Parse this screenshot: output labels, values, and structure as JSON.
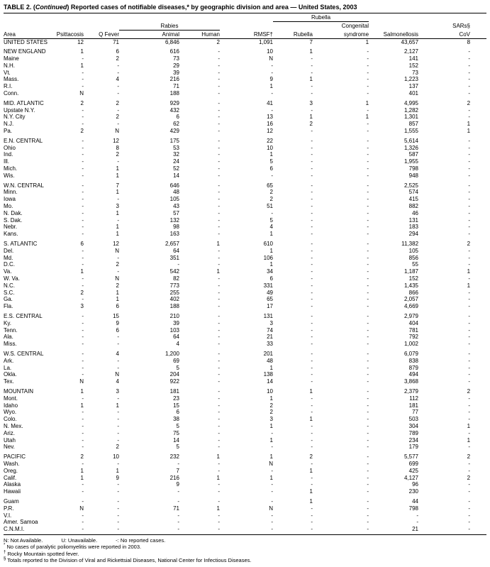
{
  "title": {
    "prefix": "TABLE 2. (",
    "continued": "Continued",
    "suffix": ") Reported cases of notifiable diseases,* by geographic division and area — United States, 2003"
  },
  "table": {
    "group_headers": {
      "rabies": "Rabies",
      "rubella": "Rubella",
      "congenital_line1": "Congenital",
      "sars_line1": "SARs§"
    },
    "columns": {
      "area": "Area",
      "psittacosis": "Psittacosis",
      "q_fever": "Q Fever",
      "animal": "Animal",
      "human": "Human",
      "rmsf": "RMSF†",
      "rubella": "Rubella",
      "congenital_line2": "syndrome",
      "salmonellosis": "Salmonellosis",
      "sars_line2": "CoV"
    },
    "sections": [
      {
        "rows": [
          {
            "area": "UNITED STATES",
            "values": [
              "12",
              "71",
              "6,846",
              "2",
              "1,091",
              "7",
              "1",
              "43,657",
              "8"
            ]
          }
        ]
      },
      {
        "rows": [
          {
            "area": "NEW ENGLAND",
            "values": [
              "1",
              "6",
              "616",
              "-",
              "10",
              "1",
              "-",
              "2,127",
              "-"
            ]
          },
          {
            "area": "Maine",
            "values": [
              "-",
              "2",
              "73",
              "-",
              "N",
              "-",
              "-",
              "141",
              "-"
            ]
          },
          {
            "area": "N.H.",
            "values": [
              "1",
              "-",
              "29",
              "-",
              "-",
              "-",
              "-",
              "152",
              "-"
            ]
          },
          {
            "area": "Vt.",
            "values": [
              "-",
              "-",
              "39",
              "-",
              "-",
              "-",
              "-",
              "73",
              "-"
            ]
          },
          {
            "area": "Mass.",
            "values": [
              "-",
              "4",
              "216",
              "-",
              "9",
              "1",
              "-",
              "1,223",
              "-"
            ]
          },
          {
            "area": "R.I.",
            "values": [
              "-",
              "-",
              "71",
              "-",
              "1",
              "-",
              "-",
              "137",
              "-"
            ]
          },
          {
            "area": "Conn.",
            "values": [
              "N",
              "-",
              "188",
              "-",
              "-",
              "-",
              "-",
              "401",
              "-"
            ]
          }
        ]
      },
      {
        "rows": [
          {
            "area": "MID. ATLANTIC",
            "values": [
              "2",
              "2",
              "929",
              "-",
              "41",
              "3",
              "1",
              "4,995",
              "2"
            ]
          },
          {
            "area": "Upstate N.Y.",
            "values": [
              "-",
              "-",
              "432",
              "-",
              "-",
              "-",
              "-",
              "1,282",
              "-"
            ]
          },
          {
            "area": "N.Y. City",
            "values": [
              "-",
              "2",
              "6",
              "-",
              "13",
              "1",
              "1",
              "1,301",
              "-"
            ]
          },
          {
            "area": "N.J.",
            "values": [
              "-",
              "-",
              "62",
              "-",
              "16",
              "2",
              "-",
              "857",
              "1"
            ]
          },
          {
            "area": "Pa.",
            "values": [
              "2",
              "N",
              "429",
              "-",
              "12",
              "-",
              "-",
              "1,555",
              "1"
            ]
          }
        ]
      },
      {
        "rows": [
          {
            "area": "E.N. CENTRAL",
            "values": [
              "-",
              "12",
              "175",
              "-",
              "22",
              "-",
              "-",
              "5,614",
              "-"
            ]
          },
          {
            "area": "Ohio",
            "values": [
              "-",
              "8",
              "53",
              "-",
              "10",
              "-",
              "-",
              "1,326",
              "-"
            ]
          },
          {
            "area": "Ind.",
            "values": [
              "-",
              "2",
              "32",
              "-",
              "1",
              "-",
              "-",
              "587",
              "-"
            ]
          },
          {
            "area": "Ill.",
            "values": [
              "-",
              "-",
              "24",
              "-",
              "5",
              "-",
              "-",
              "1,955",
              "-"
            ]
          },
          {
            "area": "Mich.",
            "values": [
              "-",
              "1",
              "52",
              "-",
              "6",
              "-",
              "-",
              "798",
              "-"
            ]
          },
          {
            "area": "Wis.",
            "values": [
              "-",
              "1",
              "14",
              "-",
              "-",
              "-",
              "-",
              "948",
              "-"
            ]
          }
        ]
      },
      {
        "rows": [
          {
            "area": "W.N. CENTRAL",
            "values": [
              "-",
              "7",
              "646",
              "-",
              "65",
              "-",
              "-",
              "2,525",
              "-"
            ]
          },
          {
            "area": "Minn.",
            "values": [
              "-",
              "1",
              "48",
              "-",
              "2",
              "-",
              "-",
              "574",
              "-"
            ]
          },
          {
            "area": "Iowa",
            "values": [
              "-",
              "-",
              "105",
              "-",
              "2",
              "-",
              "-",
              "415",
              "-"
            ]
          },
          {
            "area": "Mo.",
            "values": [
              "-",
              "3",
              "43",
              "-",
              "51",
              "-",
              "-",
              "882",
              "-"
            ]
          },
          {
            "area": "N. Dak.",
            "values": [
              "-",
              "1",
              "57",
              "-",
              "-",
              "-",
              "-",
              "46",
              "-"
            ]
          },
          {
            "area": "S. Dak.",
            "values": [
              "-",
              "-",
              "132",
              "-",
              "5",
              "-",
              "-",
              "131",
              "-"
            ]
          },
          {
            "area": "Nebr.",
            "values": [
              "-",
              "1",
              "98",
              "-",
              "4",
              "-",
              "-",
              "183",
              "-"
            ]
          },
          {
            "area": "Kans.",
            "values": [
              "-",
              "1",
              "163",
              "-",
              "1",
              "-",
              "-",
              "294",
              "-"
            ]
          }
        ]
      },
      {
        "rows": [
          {
            "area": "S. ATLANTIC",
            "values": [
              "6",
              "12",
              "2,657",
              "1",
              "610",
              "-",
              "-",
              "11,382",
              "2"
            ]
          },
          {
            "area": "Del.",
            "values": [
              "-",
              "N",
              "64",
              "-",
              "1",
              "-",
              "-",
              "105",
              "-"
            ]
          },
          {
            "area": "Md.",
            "values": [
              "-",
              "-",
              "351",
              "-",
              "106",
              "-",
              "-",
              "856",
              "-"
            ]
          },
          {
            "area": "D.C.",
            "values": [
              "-",
              "2",
              "-",
              "-",
              "1",
              "-",
              "-",
              "55",
              "-"
            ]
          },
          {
            "area": "Va.",
            "values": [
              "1",
              "-",
              "542",
              "1",
              "34",
              "-",
              "-",
              "1,187",
              "1"
            ]
          },
          {
            "area": "W. Va.",
            "values": [
              "-",
              "N",
              "82",
              "-",
              "6",
              "-",
              "-",
              "152",
              "-"
            ]
          },
          {
            "area": "N.C.",
            "values": [
              "-",
              "2",
              "773",
              "-",
              "331",
              "-",
              "-",
              "1,435",
              "1"
            ]
          },
          {
            "area": "S.C.",
            "values": [
              "2",
              "1",
              "255",
              "-",
              "49",
              "-",
              "-",
              "866",
              "-"
            ]
          },
          {
            "area": "Ga.",
            "values": [
              "-",
              "1",
              "402",
              "-",
              "65",
              "-",
              "-",
              "2,057",
              "-"
            ]
          },
          {
            "area": "Fla.",
            "values": [
              "3",
              "6",
              "188",
              "-",
              "17",
              "-",
              "-",
              "4,669",
              "-"
            ]
          }
        ]
      },
      {
        "rows": [
          {
            "area": "E.S. CENTRAL",
            "values": [
              "-",
              "15",
              "210",
              "-",
              "131",
              "-",
              "-",
              "2,979",
              "-"
            ]
          },
          {
            "area": "Ky.",
            "values": [
              "-",
              "9",
              "39",
              "-",
              "3",
              "-",
              "-",
              "404",
              "-"
            ]
          },
          {
            "area": "Tenn.",
            "values": [
              "-",
              "6",
              "103",
              "-",
              "74",
              "-",
              "-",
              "781",
              "-"
            ]
          },
          {
            "area": "Ala.",
            "values": [
              "-",
              "-",
              "64",
              "-",
              "21",
              "-",
              "-",
              "792",
              "-"
            ]
          },
          {
            "area": "Miss.",
            "values": [
              "-",
              "-",
              "4",
              "-",
              "33",
              "-",
              "-",
              "1,002",
              "-"
            ]
          }
        ]
      },
      {
        "rows": [
          {
            "area": "W.S. CENTRAL",
            "values": [
              "-",
              "4",
              "1,200",
              "-",
              "201",
              "-",
              "-",
              "6,079",
              "-"
            ]
          },
          {
            "area": "Ark.",
            "values": [
              "-",
              "-",
              "69",
              "-",
              "48",
              "-",
              "-",
              "838",
              "-"
            ]
          },
          {
            "area": "La.",
            "values": [
              "-",
              "-",
              "5",
              "-",
              "1",
              "-",
              "-",
              "879",
              "-"
            ]
          },
          {
            "area": "Okla.",
            "values": [
              "-",
              "N",
              "204",
              "-",
              "138",
              "-",
              "-",
              "494",
              "-"
            ]
          },
          {
            "area": "Tex.",
            "values": [
              "N",
              "4",
              "922",
              "-",
              "14",
              "-",
              "-",
              "3,868",
              "-"
            ]
          }
        ]
      },
      {
        "rows": [
          {
            "area": "MOUNTAIN",
            "values": [
              "1",
              "3",
              "181",
              "-",
              "10",
              "1",
              "-",
              "2,379",
              "2"
            ]
          },
          {
            "area": "Mont.",
            "values": [
              "-",
              "-",
              "23",
              "-",
              "1",
              "-",
              "-",
              "112",
              "-"
            ]
          },
          {
            "area": "Idaho",
            "values": [
              "1",
              "1",
              "15",
              "-",
              "2",
              "-",
              "-",
              "181",
              "-"
            ]
          },
          {
            "area": "Wyo.",
            "values": [
              "-",
              "-",
              "6",
              "-",
              "2",
              "-",
              "-",
              "77",
              "-"
            ]
          },
          {
            "area": "Colo.",
            "values": [
              "-",
              "-",
              "38",
              "-",
              "3",
              "1",
              "-",
              "503",
              "-"
            ]
          },
          {
            "area": "N. Mex.",
            "values": [
              "-",
              "-",
              "5",
              "-",
              "1",
              "-",
              "-",
              "304",
              "1"
            ]
          },
          {
            "area": "Ariz.",
            "values": [
              "-",
              "-",
              "75",
              "-",
              "-",
              "-",
              "-",
              "789",
              "-"
            ]
          },
          {
            "area": "Utah",
            "values": [
              "-",
              "-",
              "14",
              "-",
              "1",
              "-",
              "-",
              "234",
              "1"
            ]
          },
          {
            "area": "Nev.",
            "values": [
              "-",
              "2",
              "5",
              "-",
              "-",
              "-",
              "-",
              "179",
              "-"
            ]
          }
        ]
      },
      {
        "rows": [
          {
            "area": "PACIFIC",
            "values": [
              "2",
              "10",
              "232",
              "1",
              "1",
              "2",
              "-",
              "5,577",
              "2"
            ]
          },
          {
            "area": "Wash.",
            "values": [
              "-",
              "-",
              "-",
              "-",
              "N",
              "-",
              "-",
              "699",
              "-"
            ]
          },
          {
            "area": "Oreg.",
            "values": [
              "1",
              "1",
              "7",
              "-",
              "-",
              "1",
              "-",
              "425",
              "-"
            ]
          },
          {
            "area": "Calif.",
            "values": [
              "1",
              "9",
              "216",
              "1",
              "1",
              "-",
              "-",
              "4,127",
              "2"
            ]
          },
          {
            "area": "Alaska",
            "values": [
              "-",
              "-",
              "9",
              "-",
              "-",
              "-",
              "-",
              "96",
              "-"
            ]
          },
          {
            "area": "Hawaii",
            "values": [
              "-",
              "-",
              "-",
              "-",
              "-",
              "1",
              "-",
              "230",
              "-"
            ]
          }
        ]
      },
      {
        "rows": [
          {
            "area": "Guam",
            "values": [
              "-",
              "-",
              "-",
              "-",
              "-",
              "1",
              "-",
              "44",
              "-"
            ]
          },
          {
            "area": "P.R.",
            "values": [
              "N",
              "-",
              "71",
              "1",
              "N",
              "-",
              "-",
              "798",
              "-"
            ]
          },
          {
            "area": "V.I.",
            "values": [
              "-",
              "-",
              "-",
              "-",
              "-",
              "-",
              "-",
              "-",
              "-"
            ]
          },
          {
            "area": "Amer. Samoa",
            "values": [
              "-",
              "-",
              "-",
              "-",
              "-",
              "-",
              "-",
              "-",
              "-"
            ]
          },
          {
            "area": "C.N.M.I.",
            "values": [
              "-",
              "-",
              "-",
              "-",
              "-",
              "-",
              "-",
              "21",
              "-"
            ]
          }
        ]
      }
    ]
  },
  "footnotes": {
    "legend": [
      "N: Not Available.",
      "U: Unavailable.",
      "-: No reported cases."
    ],
    "notes": [
      {
        "symbol": "*",
        "text": "No cases of paralytic poliomyelitis were reported in 2003."
      },
      {
        "symbol": "†",
        "text": "Rocky Mountain spotted fever."
      },
      {
        "symbol": "§",
        "text": "Totals reported to the Division of Viral and Rickettsial Diseases, National Center for Infectious Diseases."
      }
    ]
  }
}
